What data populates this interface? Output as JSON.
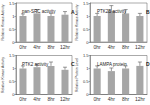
{
  "chart_data": [
    {
      "type": "bar",
      "title": "pan-SRC activity",
      "annotation": "A",
      "y_label": "Relative Kinase Activity",
      "categories": [
        "0hr",
        "4hr",
        "8hr",
        "12hr"
      ],
      "values": [
        1.0,
        1.1,
        1.0,
        1.05
      ],
      "errors": [
        0.08,
        0.15,
        0.1,
        0.12
      ],
      "color": "#a6a6a6",
      "ylim": [
        0,
        1.5
      ],
      "yticks": [
        0,
        0.5,
        1,
        1.5
      ],
      "grid": false
    },
    {
      "type": "bar",
      "title": "PTK2B activity",
      "annotation": "B",
      "y_label": "Relative Kinase Activity",
      "categories": [
        "0hr",
        "4hr",
        "8hr",
        "12hr"
      ],
      "values": [
        1.0,
        1.2,
        1.1,
        1.0
      ],
      "errors": [
        0.1,
        0.2,
        0.15,
        0.1
      ],
      "color": "#a6a6a6",
      "ylim": [
        0,
        1.5
      ],
      "yticks": [
        0,
        0.5,
        1,
        1.5
      ],
      "grid": false
    },
    {
      "type": "bar",
      "title": "PTK2 activity",
      "annotation": "C",
      "y_label": "Relative Kinase Activity",
      "categories": [
        "0hr",
        "4hr",
        "8hr",
        "12hr"
      ],
      "values": [
        1.0,
        1.05,
        1.1,
        0.95
      ],
      "errors": [
        0.1,
        0.12,
        0.15,
        0.1
      ],
      "color": "#a6a6a6",
      "ylim": [
        0,
        1.5
      ],
      "yticks": [
        0,
        0.5,
        1,
        1.5
      ],
      "grid": false
    },
    {
      "type": "bar",
      "title": "LAMPA protein",
      "annotation": "D",
      "y_label": "Relative Protein Level",
      "categories": [
        "0hr",
        "4hr",
        "8hr",
        "12hr"
      ],
      "values": [
        1.0,
        0.9,
        1.0,
        1.1
      ],
      "errors": [
        0.1,
        0.12,
        0.1,
        0.15
      ],
      "color": "#a6a6a6",
      "ylim": [
        0,
        1.5
      ],
      "yticks": [
        0,
        0.5,
        1,
        1.5
      ],
      "grid": false
    }
  ]
}
